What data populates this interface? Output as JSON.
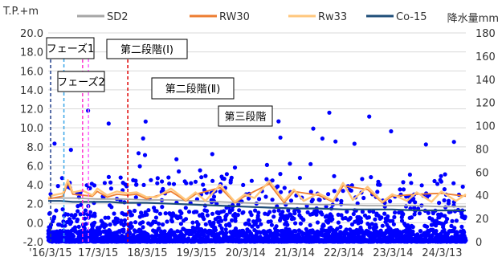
{
  "chart_data": {
    "type": "line",
    "y_left": {
      "label": "T.P.+m",
      "lim": [
        -2.0,
        20.0
      ],
      "ticks": [
        "20.0",
        "18.0",
        "16.0",
        "14.0",
        "12.0",
        "10.0",
        "8.0",
        "6.0",
        "4.0",
        "2.0",
        "0.0",
        "-2.0"
      ]
    },
    "y_right": {
      "label": "降水量mm",
      "lim": [
        0,
        180
      ],
      "ticks": [
        "180",
        "160",
        "140",
        "120",
        "100",
        "80",
        "60",
        "40",
        "20",
        "0"
      ]
    },
    "x_ticks": [
      "'16/3/15",
      "17/3/15",
      "18/3/15",
      "19/3/15",
      "20/3/14",
      "21/3/14",
      "22/3/14",
      "23/3/14",
      "24/3/13"
    ],
    "x_tick_values": [
      0,
      1,
      2,
      3,
      4,
      5,
      6,
      7,
      8
    ],
    "x_range": [
      0,
      8.5
    ],
    "legend": [
      {
        "name": "SD2",
        "color": "#a6a6a6"
      },
      {
        "name": "RW30",
        "color": "#ed7d31"
      },
      {
        "name": "Rw33",
        "color": "#ffc77d"
      },
      {
        "name": "Co-15",
        "color": "#1f4e79"
      }
    ],
    "precip_color": "#0000ff",
    "annotations": [
      {
        "text": "フェーズ1",
        "x": 0.05,
        "color": "#1f3e8a",
        "boxed": true
      },
      {
        "text": "フェーズ2",
        "x": 0.7,
        "color": "#ff33cc",
        "boxed": true
      },
      {
        "text": "第二段階(Ⅰ)",
        "x": 1.62,
        "color": "#e00000",
        "boxed": true
      },
      {
        "text": "第二段階(Ⅱ)",
        "x": 2.55,
        "boxed": true
      },
      {
        "text": "第三段階",
        "x": 4.15,
        "boxed": true
      }
    ],
    "extra_lines": [
      {
        "x": 0.32,
        "color": "#3aa5e8"
      },
      {
        "x": 0.82,
        "color": "#ff66ff"
      }
    ],
    "series": [
      {
        "name": "Co-15",
        "x": [
          0,
          0.25,
          0.5,
          0.75,
          1.0,
          1.25,
          1.5,
          1.75,
          2.0,
          2.5,
          3.0,
          3.5,
          4.0,
          4.5,
          5.0,
          5.5,
          6.0,
          6.5,
          7.0,
          7.5,
          8.0,
          8.5
        ],
        "y": [
          2.3,
          2.3,
          2.2,
          2.2,
          2.2,
          2.2,
          2.1,
          2.1,
          2.1,
          2.0,
          1.9,
          1.8,
          1.7,
          1.6,
          1.5,
          1.5,
          1.4,
          1.4,
          1.4,
          1.3,
          1.3,
          1.3
        ]
      },
      {
        "name": "Rw33",
        "x": [
          0,
          0.1,
          0.3,
          0.4,
          0.5,
          0.7,
          0.9,
          1.0,
          1.2,
          1.4,
          1.6,
          1.8,
          2.0,
          2.2,
          2.5,
          2.8,
          3.0,
          3.2,
          3.5,
          3.8,
          4.0,
          4.2,
          4.5,
          4.8,
          5.0,
          5.2,
          5.5,
          5.8,
          6.0,
          6.2,
          6.5,
          6.8,
          7.0,
          7.3,
          7.5,
          7.8,
          8.0,
          8.3,
          8.5
        ],
        "y": [
          2.6,
          2.9,
          3.1,
          4.5,
          3.2,
          3.4,
          2.9,
          3.6,
          2.9,
          3.3,
          3.1,
          3.2,
          2.7,
          2.7,
          3.6,
          2.4,
          3.2,
          2.3,
          4.0,
          2.2,
          3.0,
          2.6,
          4.4,
          2.3,
          3.5,
          2.3,
          3.1,
          2.3,
          4.2,
          2.4,
          3.8,
          2.2,
          3.0,
          2.3,
          3.2,
          2.2,
          3.3,
          2.3,
          3.0
        ]
      },
      {
        "name": "RW30",
        "x": [
          0,
          0.3,
          0.4,
          0.5,
          0.9,
          1.0,
          1.2,
          1.4,
          1.6,
          1.8,
          2.0,
          2.5,
          2.8,
          3.0,
          3.5,
          3.8,
          4.0,
          4.5,
          4.8,
          5.0,
          5.5,
          5.8,
          6.0,
          6.5,
          6.8,
          7.0,
          7.5,
          8.0,
          8.5
        ],
        "y": [
          2.5,
          2.8,
          4.2,
          3.0,
          2.8,
          3.3,
          2.7,
          3.0,
          2.9,
          3.0,
          2.5,
          3.3,
          2.3,
          3.0,
          3.7,
          2.1,
          2.8,
          4.1,
          2.1,
          3.3,
          2.9,
          2.2,
          3.9,
          3.5,
          2.1,
          2.8,
          3.0,
          3.1,
          2.8
        ]
      },
      {
        "name": "SD2",
        "x": [
          0,
          0.5,
          1.0,
          1.5,
          2.0,
          2.5,
          3.0,
          3.5,
          4.0,
          4.5,
          5.0,
          5.5,
          6.0,
          6.5,
          7.0,
          7.5,
          8.0,
          8.5
        ],
        "y": [
          2.6,
          2.6,
          2.5,
          2.5,
          2.4,
          2.4,
          2.3,
          2.2,
          2.1,
          2.0,
          2.0,
          1.9,
          1.9,
          1.8,
          1.8,
          1.8,
          1.7,
          1.7
        ]
      }
    ]
  }
}
